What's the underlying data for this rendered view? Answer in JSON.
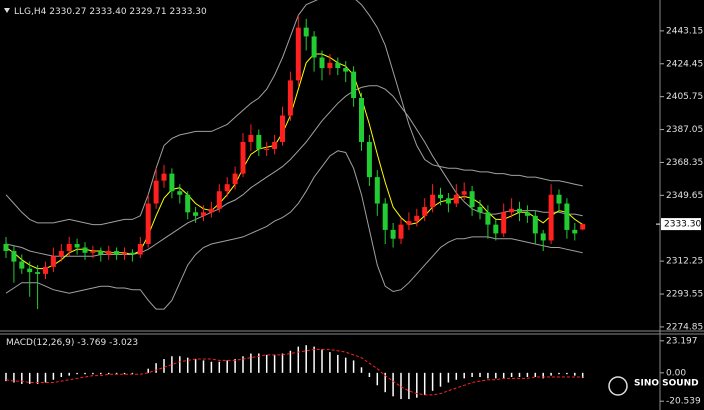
{
  "chart_data": [
    {
      "type": "candlestick",
      "symbol": "LLG,H4",
      "last_ohlc_labels": [
        "2330.27",
        "2333.40",
        "2329.71",
        "2333.30"
      ],
      "up_color": "#ff2020",
      "down_color": "#22cc33",
      "ylim": [
        2273.1,
        2460.7
      ],
      "yticks": [
        2443.15,
        2424.45,
        2405.75,
        2387.05,
        2368.35,
        2349.65,
        2312.25,
        2293.55,
        2274.85
      ],
      "price_marker": {
        "value": 2333.3,
        "label": "2333.30"
      },
      "candles": [
        [
          2322,
          2326,
          2314,
          2318
        ],
        [
          2318,
          2321,
          2300,
          2312
        ],
        [
          2312,
          2316,
          2305,
          2308
        ],
        [
          2308,
          2312,
          2292,
          2306
        ],
        [
          2306,
          2310,
          2285,
          2305
        ],
        [
          2305,
          2312,
          2302,
          2309
        ],
        [
          2309,
          2320,
          2306,
          2315
        ],
        [
          2315,
          2322,
          2312,
          2318
        ],
        [
          2318,
          2326,
          2315,
          2322
        ],
        [
          2322,
          2325,
          2316,
          2320
        ],
        [
          2320,
          2323,
          2313,
          2317
        ],
        [
          2317,
          2321,
          2314,
          2318
        ],
        [
          2318,
          2320,
          2312,
          2316
        ],
        [
          2316,
          2321,
          2313,
          2318
        ],
        [
          2318,
          2320,
          2313,
          2316
        ],
        [
          2316,
          2320,
          2313,
          2317
        ],
        [
          2317,
          2319,
          2312,
          2316
        ],
        [
          2316,
          2326,
          2314,
          2322
        ],
        [
          2322,
          2350,
          2320,
          2345
        ],
        [
          2345,
          2365,
          2342,
          2358
        ],
        [
          2358,
          2367,
          2354,
          2362
        ],
        [
          2362,
          2365,
          2348,
          2352
        ],
        [
          2352,
          2356,
          2345,
          2350
        ],
        [
          2350,
          2352,
          2336,
          2340
        ],
        [
          2340,
          2343,
          2334,
          2338
        ],
        [
          2338,
          2344,
          2335,
          2340
        ],
        [
          2340,
          2346,
          2337,
          2342
        ],
        [
          2342,
          2356,
          2340,
          2352
        ],
        [
          2352,
          2360,
          2349,
          2356
        ],
        [
          2356,
          2366,
          2353,
          2362
        ],
        [
          2362,
          2385,
          2360,
          2380
        ],
        [
          2380,
          2390,
          2375,
          2384
        ],
        [
          2384,
          2387,
          2372,
          2376
        ],
        [
          2376,
          2380,
          2372,
          2376
        ],
        [
          2376,
          2384,
          2373,
          2380
        ],
        [
          2380,
          2400,
          2378,
          2395
        ],
        [
          2395,
          2420,
          2392,
          2415
        ],
        [
          2415,
          2452,
          2412,
          2445
        ],
        [
          2445,
          2450,
          2432,
          2440
        ],
        [
          2440,
          2443,
          2420,
          2428
        ],
        [
          2428,
          2432,
          2415,
          2422
        ],
        [
          2422,
          2430,
          2418,
          2425
        ],
        [
          2425,
          2428,
          2418,
          2422
        ],
        [
          2422,
          2426,
          2414,
          2420
        ],
        [
          2420,
          2423,
          2400,
          2405
        ],
        [
          2405,
          2408,
          2375,
          2380
        ],
        [
          2380,
          2384,
          2355,
          2360
        ],
        [
          2360,
          2364,
          2338,
          2345
        ],
        [
          2345,
          2348,
          2322,
          2330
        ],
        [
          2330,
          2334,
          2320,
          2325
        ],
        [
          2325,
          2337,
          2322,
          2333
        ],
        [
          2333,
          2340,
          2330,
          2335
        ],
        [
          2335,
          2342,
          2332,
          2338
        ],
        [
          2338,
          2348,
          2335,
          2343
        ],
        [
          2343,
          2356,
          2340,
          2350
        ],
        [
          2350,
          2354,
          2344,
          2348
        ],
        [
          2348,
          2351,
          2340,
          2345
        ],
        [
          2345,
          2356,
          2343,
          2350
        ],
        [
          2350,
          2357,
          2347,
          2352
        ],
        [
          2352,
          2355,
          2338,
          2343
        ],
        [
          2343,
          2347,
          2336,
          2340
        ],
        [
          2340,
          2344,
          2325,
          2333
        ],
        [
          2333,
          2336,
          2324,
          2328
        ],
        [
          2328,
          2345,
          2326,
          2340
        ],
        [
          2340,
          2348,
          2337,
          2342
        ],
        [
          2342,
          2346,
          2335,
          2340
        ],
        [
          2340,
          2344,
          2334,
          2338
        ],
        [
          2338,
          2341,
          2322,
          2328
        ],
        [
          2328,
          2330,
          2318,
          2324
        ],
        [
          2324,
          2356,
          2322,
          2350
        ],
        [
          2350,
          2353,
          2340,
          2345
        ],
        [
          2345,
          2348,
          2325,
          2330
        ],
        [
          2330,
          2334,
          2324,
          2328
        ],
        [
          2330.27,
          2333.4,
          2329.71,
          2333.3
        ]
      ],
      "lines": [
        {
          "color": "#a0a0a0",
          "values": [
            2350,
            2345,
            2340,
            2336,
            2334,
            2334,
            2334,
            2335,
            2336,
            2335,
            2334,
            2333,
            2333,
            2334,
            2335,
            2336,
            2336,
            2338,
            2350,
            2365,
            2378,
            2382,
            2384,
            2385,
            2386,
            2386,
            2386,
            2388,
            2390,
            2394,
            2398,
            2402,
            2405,
            2410,
            2418,
            2428,
            2440,
            2452,
            2458,
            2460,
            2462,
            2464,
            2464,
            2464,
            2462,
            2458,
            2452,
            2445,
            2435,
            2420,
            2405,
            2390,
            2378,
            2370,
            2367,
            2366,
            2365,
            2365,
            2364,
            2364,
            2363,
            2363,
            2362,
            2362,
            2361,
            2361,
            2360,
            2360,
            2359,
            2358,
            2358,
            2357,
            2356,
            2355
          ]
        },
        {
          "color": "#a0a0a0",
          "values": [
            2322,
            2321,
            2320,
            2318,
            2317,
            2316,
            2315,
            2315,
            2315,
            2315,
            2315,
            2315,
            2316,
            2316,
            2316,
            2316,
            2316,
            2317,
            2319,
            2322,
            2325,
            2328,
            2331,
            2334,
            2336,
            2338,
            2340,
            2342,
            2345,
            2347,
            2350,
            2354,
            2357,
            2360,
            2363,
            2366,
            2370,
            2375,
            2380,
            2386,
            2392,
            2397,
            2402,
            2406,
            2409,
            2411,
            2412,
            2412,
            2410,
            2406,
            2400,
            2394,
            2387,
            2380,
            2372,
            2365,
            2358,
            2351,
            2346,
            2342,
            2340,
            2339,
            2339,
            2340,
            2341,
            2341,
            2341,
            2341,
            2340,
            2340,
            2340,
            2339,
            2339,
            2338
          ]
        },
        {
          "color": "#a0a0a0",
          "values": [
            2294,
            2297,
            2300,
            2300,
            2300,
            2298,
            2296,
            2295,
            2294,
            2295,
            2296,
            2297,
            2298,
            2298,
            2297,
            2297,
            2296,
            2296,
            2290,
            2285,
            2285,
            2290,
            2300,
            2310,
            2316,
            2320,
            2322,
            2323,
            2324,
            2325,
            2326,
            2328,
            2330,
            2332,
            2335,
            2337,
            2340,
            2345,
            2352,
            2360,
            2366,
            2372,
            2375,
            2374,
            2365,
            2350,
            2330,
            2310,
            2298,
            2295,
            2296,
            2300,
            2305,
            2310,
            2315,
            2320,
            2323,
            2325,
            2325,
            2326,
            2326,
            2326,
            2325,
            2325,
            2325,
            2324,
            2323,
            2322,
            2321,
            2320,
            2320,
            2319,
            2318,
            2317
          ]
        },
        {
          "color": "#ffff00",
          "values": [
            2320,
            2317,
            2313,
            2310,
            2308,
            2308,
            2310,
            2313,
            2317,
            2319,
            2319,
            2318,
            2318,
            2317,
            2317,
            2317,
            2316,
            2318,
            2327,
            2338,
            2348,
            2353,
            2354,
            2350,
            2345,
            2342,
            2341,
            2345,
            2350,
            2356,
            2365,
            2373,
            2376,
            2377,
            2378,
            2385,
            2395,
            2410,
            2425,
            2430,
            2430,
            2428,
            2425,
            2423,
            2418,
            2405,
            2390,
            2373,
            2357,
            2343,
            2337,
            2333,
            2334,
            2338,
            2343,
            2346,
            2347,
            2348,
            2349,
            2348,
            2345,
            2340,
            2336,
            2336,
            2338,
            2340,
            2340,
            2337,
            2334,
            2338,
            2341,
            2340,
            2336,
            2333
          ]
        }
      ]
    },
    {
      "type": "macd",
      "title": "MACD(12,26,9)",
      "ylim": [
        -26.18,
        28.13
      ],
      "yticks": [
        23.197,
        {
          "value": 0,
          "label": "0.00"
        },
        -20.539
      ],
      "histogram_color": "#ffffff",
      "signal_color": "#ff2020",
      "histogram": [
        -6,
        -7,
        -8,
        -8,
        -8,
        -7,
        -5,
        -3,
        -2,
        -1,
        -1,
        -1,
        -1,
        -1,
        -1,
        -1,
        -1,
        0,
        3,
        7,
        10,
        12,
        12,
        11,
        10,
        9,
        8,
        8,
        9,
        10,
        12,
        14,
        14,
        13,
        13,
        14,
        16,
        19,
        20,
        19,
        17,
        15,
        13,
        11,
        9,
        4,
        -3,
        -9,
        -14,
        -17,
        -19,
        -19,
        -18,
        -16,
        -13,
        -10,
        -7,
        -5,
        -4,
        -3,
        -3,
        -4,
        -4,
        -4,
        -3,
        -3,
        -3,
        -3,
        -4,
        -2,
        -1,
        -1,
        -2,
        -3.769
      ],
      "signal": [
        -5,
        -6,
        -6,
        -7,
        -7,
        -7,
        -7,
        -6,
        -5,
        -4,
        -3,
        -2,
        -2,
        -1,
        -1,
        -1,
        -1,
        -1,
        0,
        2,
        4,
        6,
        8,
        9,
        10,
        10,
        10,
        9,
        9,
        9,
        10,
        11,
        12,
        13,
        13,
        13,
        14,
        15,
        16,
        17,
        17,
        17,
        16,
        15,
        13,
        11,
        7,
        3,
        -2,
        -6,
        -10,
        -13,
        -15,
        -16,
        -16,
        -15,
        -13,
        -11,
        -9,
        -7,
        -6,
        -5,
        -5,
        -4,
        -4,
        -4,
        -4,
        -3,
        -3,
        -3,
        -3,
        -3,
        -3,
        -3.023
      ]
    }
  ],
  "watermark": "SINO SOUND"
}
